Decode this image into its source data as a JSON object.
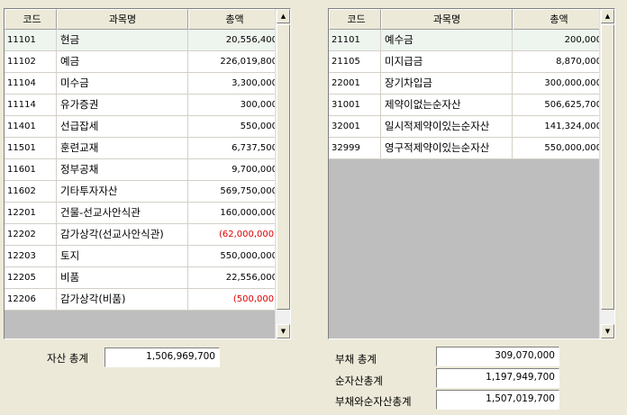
{
  "asset_grid": {
    "headers": [
      "코드",
      "과목명",
      "총액"
    ],
    "rows": [
      {
        "code": "11101",
        "name": "현금",
        "amount": "20,556,400"
      },
      {
        "code": "11102",
        "name": "예금",
        "amount": "226,019,800"
      },
      {
        "code": "11104",
        "name": "미수금",
        "amount": "3,300,000"
      },
      {
        "code": "11114",
        "name": "유가증권",
        "amount": "300,000"
      },
      {
        "code": "11401",
        "name": "선급잡세",
        "amount": "550,000"
      },
      {
        "code": "11501",
        "name": "훈련교재",
        "amount": "6,737,500"
      },
      {
        "code": "11601",
        "name": "정부공채",
        "amount": "9,700,000"
      },
      {
        "code": "11602",
        "name": "기타투자자산",
        "amount": "569,750,000"
      },
      {
        "code": "12201",
        "name": "건물-선교사안식관",
        "amount": "160,000,000"
      },
      {
        "code": "12202",
        "name": "감가상각(선교사안식관)",
        "amount": "(62,000,000)"
      },
      {
        "code": "12203",
        "name": "토지",
        "amount": "550,000,000"
      },
      {
        "code": "12205",
        "name": "비품",
        "amount": "22,556,000"
      },
      {
        "code": "12206",
        "name": "감가상각(비품)",
        "amount": "(500,000)"
      }
    ]
  },
  "liability_grid": {
    "headers": [
      "코드",
      "과목명",
      "총액"
    ],
    "rows": [
      {
        "code": "21101",
        "name": "예수금",
        "amount": "200,000"
      },
      {
        "code": "21105",
        "name": "미지급금",
        "amount": "8,870,000"
      },
      {
        "code": "22001",
        "name": "장기차입금",
        "amount": "300,000,000"
      },
      {
        "code": "31001",
        "name": "제약이없는순자산",
        "amount": "506,625,700"
      },
      {
        "code": "32001",
        "name": "일시적제약이있는순자산",
        "amount": "141,324,000"
      },
      {
        "code": "32999",
        "name": "영구적제약이있는순자산",
        "amount": "550,000,000"
      }
    ]
  },
  "totals": {
    "asset_label": "자산 총계",
    "asset_value": "1,506,969,700",
    "liability_label": "부채 총계",
    "liability_value": "309,070,000",
    "net_asset_label": "순자산총계",
    "net_asset_value": "1,197,949,700",
    "liab_net_label": "부채와순자산총계",
    "liab_net_value": "1,507,019,700"
  },
  "colors": {
    "negative": "#E00000",
    "selected_row": "#EEF5EF",
    "grid_empty": "#BEBEBE"
  },
  "icons": {
    "scroll_up": "up-arrow-icon",
    "scroll_down": "down-arrow-icon"
  }
}
